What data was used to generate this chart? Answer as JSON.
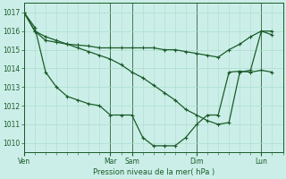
{
  "bg_color": "#cceee8",
  "grid_color": "#aaddcc",
  "line_color": "#1a5c2a",
  "xlabel": "Pression niveau de la mer( hPa )",
  "ylim": [
    1009.5,
    1017.5
  ],
  "yticks": [
    1010,
    1011,
    1012,
    1013,
    1014,
    1015,
    1016,
    1017
  ],
  "day_labels": [
    "Ven",
    "Mar",
    "Sam",
    "Dim",
    "Lun"
  ],
  "day_x": [
    0,
    4,
    5,
    8,
    11
  ],
  "xlim": [
    0,
    12
  ],
  "series1_x": [
    0,
    0.5,
    1.0,
    1.5,
    2.0,
    2.5,
    3.0,
    3.5,
    4.0,
    4.5,
    5.0,
    5.5,
    6.0,
    6.5,
    7.0,
    7.5,
    8.0,
    8.5,
    9.0,
    9.5,
    10.0,
    10.5,
    11.0,
    11.5
  ],
  "series1_y": [
    1017.0,
    1016.0,
    1015.5,
    1015.4,
    1015.3,
    1015.25,
    1015.2,
    1015.1,
    1015.1,
    1015.1,
    1015.1,
    1015.1,
    1015.1,
    1015.0,
    1015.0,
    1014.9,
    1014.8,
    1014.7,
    1014.6,
    1015.0,
    1015.3,
    1015.7,
    1016.0,
    1016.0
  ],
  "series2_x": [
    0,
    0.5,
    1.0,
    1.5,
    2.0,
    2.5,
    3.0,
    3.5,
    4.0,
    4.5,
    5.0,
    5.5,
    6.0,
    6.5,
    7.0,
    7.5,
    8.0,
    8.5,
    9.0,
    9.5,
    10.0,
    10.5,
    11.0,
    11.5
  ],
  "series2_y": [
    1017.0,
    1016.0,
    1015.7,
    1015.5,
    1015.3,
    1015.1,
    1014.9,
    1014.7,
    1014.5,
    1014.2,
    1013.8,
    1013.5,
    1013.1,
    1012.7,
    1012.3,
    1011.8,
    1011.5,
    1011.2,
    1011.0,
    1011.1,
    1013.8,
    1013.9,
    1016.0,
    1015.8
  ],
  "series3_x": [
    0,
    0.5,
    1.0,
    1.5,
    2.0,
    2.5,
    3.0,
    3.5,
    4.0,
    4.5,
    5.0,
    5.5,
    6.0,
    6.5,
    7.0,
    7.5,
    8.0,
    8.5,
    9.0,
    9.5,
    10.0,
    10.5,
    11.0,
    11.5
  ],
  "series3_y": [
    1017.0,
    1016.2,
    1013.8,
    1013.0,
    1012.5,
    1012.3,
    1012.1,
    1012.0,
    1011.5,
    1011.5,
    1011.5,
    1010.3,
    1009.85,
    1009.85,
    1009.85,
    1010.3,
    1011.0,
    1011.5,
    1011.5,
    1013.8,
    1013.85,
    1013.8,
    1013.9,
    1013.8
  ],
  "marker": "+",
  "markersize": 3,
  "linewidth": 0.9
}
